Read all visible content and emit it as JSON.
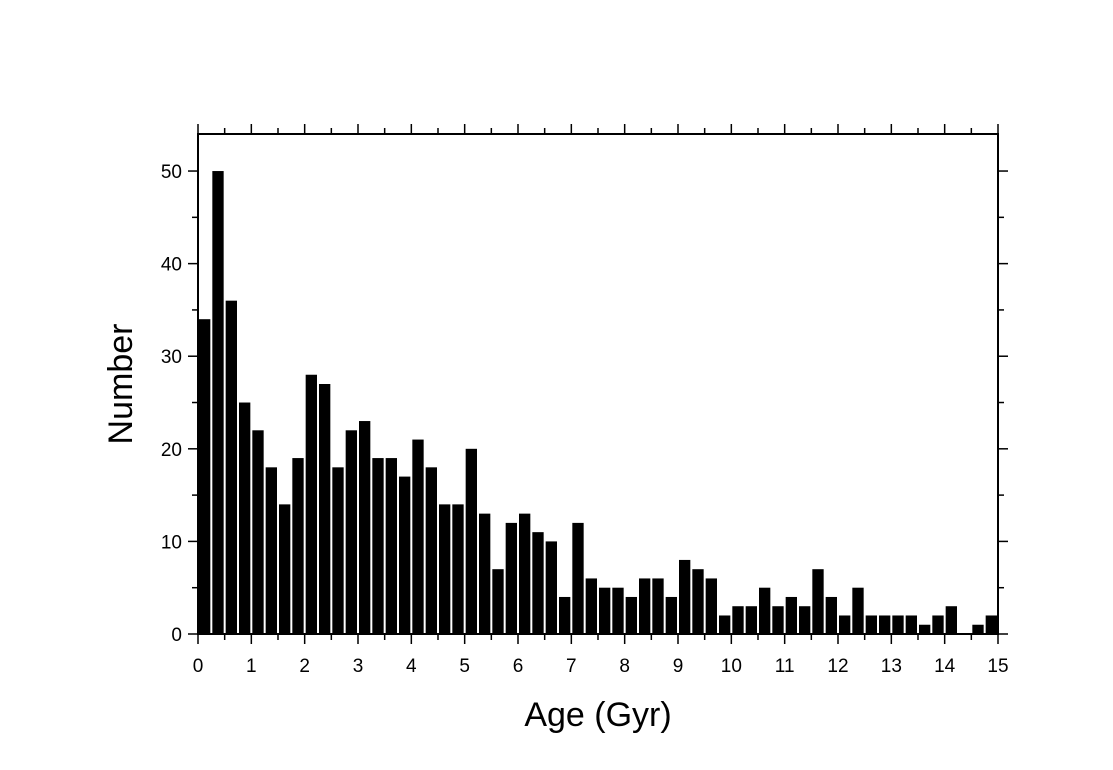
{
  "chart_data": {
    "type": "bar",
    "title": "",
    "xlabel": "Age (Gyr)",
    "ylabel": "Number",
    "xlim": [
      0,
      15
    ],
    "ylim": [
      0,
      54
    ],
    "bin_width": 0.25,
    "xticks": [
      0,
      1,
      2,
      3,
      4,
      5,
      6,
      7,
      8,
      9,
      10,
      11,
      12,
      13,
      14,
      15
    ],
    "xtick_labels": [
      "0",
      "1",
      "2",
      "3",
      "4",
      "5",
      "6",
      "7",
      "8",
      "9",
      "10",
      "11",
      "12",
      "13",
      "14",
      "15"
    ],
    "yticks": [
      0,
      10,
      20,
      30,
      40,
      50
    ],
    "ytick_labels": [
      "0",
      "10",
      "20",
      "30",
      "40",
      "50"
    ],
    "bin_starts": [
      0,
      0.25,
      0.5,
      0.75,
      1,
      1.25,
      1.5,
      1.75,
      2,
      2.25,
      2.5,
      2.75,
      3,
      3.25,
      3.5,
      3.75,
      4,
      4.25,
      4.5,
      4.75,
      5,
      5.25,
      5.5,
      5.75,
      6,
      6.25,
      6.5,
      6.75,
      7,
      7.25,
      7.5,
      7.75,
      8,
      8.25,
      8.5,
      8.75,
      9,
      9.25,
      9.5,
      9.75,
      10,
      10.25,
      10.5,
      10.75,
      11,
      11.25,
      11.5,
      11.75,
      12,
      12.25,
      12.5,
      12.75,
      13,
      13.25,
      13.5,
      13.75,
      14,
      14.25,
      14.5,
      14.75
    ],
    "values": [
      34,
      50,
      36,
      25,
      22,
      18,
      14,
      19,
      28,
      27,
      18,
      22,
      23,
      19,
      19,
      17,
      21,
      18,
      14,
      14,
      20,
      13,
      7,
      12,
      13,
      11,
      10,
      4,
      12,
      6,
      5,
      5,
      4,
      6,
      6,
      4,
      8,
      7,
      6,
      2,
      3,
      3,
      5,
      3,
      4,
      3,
      7,
      4,
      2,
      5,
      2,
      2,
      2,
      2,
      1,
      2,
      3,
      0,
      1,
      2
    ],
    "grid": false,
    "legend": "none",
    "bar_color": "#000000",
    "background": "#ffffff"
  }
}
